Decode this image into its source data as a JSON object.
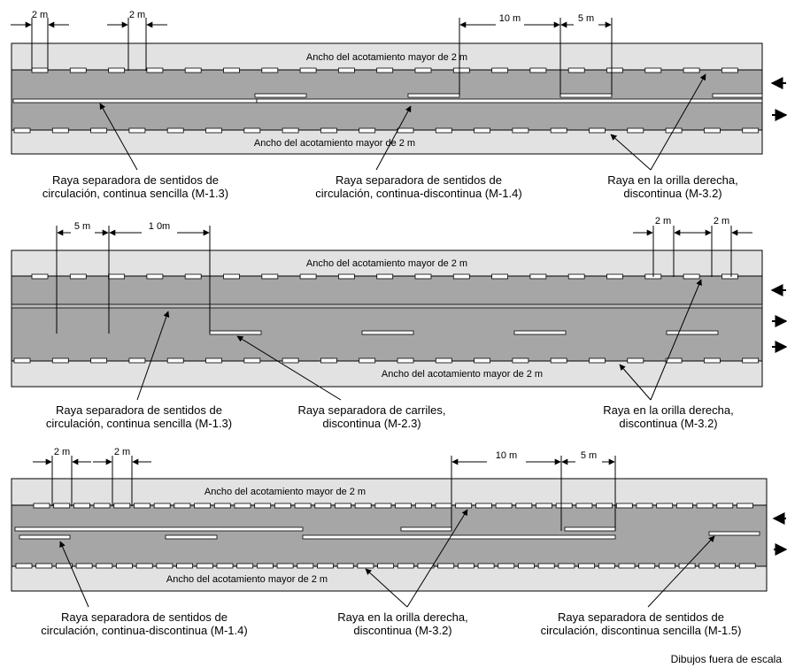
{
  "shoulder_label": "Ancho del acotamiento mayor de 2 m",
  "dimension_labels": {
    "two_m": "2 m",
    "ten_m": "10 m",
    "five_m": "5 m",
    "ten_m_alt": "1 0m"
  },
  "colors": {
    "shoulder": "#e2e2e2",
    "road": "#a6a6a6",
    "marking": "#ffffff",
    "outline": "#000000"
  },
  "diagrams": [
    {
      "id": "two-lane",
      "callouts": [
        {
          "line1": "Raya separadora de sentidos de",
          "line2": "circulación, continua sencilla (M-1.3)"
        },
        {
          "line1": "Raya separadora de sentidos de",
          "line2": "circulación, continua-discontinua (M-1.4)"
        },
        {
          "line1": "Raya en la orilla derecha,",
          "line2": "discontinua (M-3.2)"
        }
      ]
    },
    {
      "id": "three-lane",
      "callouts": [
        {
          "line1": "Raya separadora de sentidos de",
          "line2": "circulación, continua sencilla (M-1.3)"
        },
        {
          "line1": "Raya separadora de carriles,",
          "line2": "discontinua (M-2.3)"
        },
        {
          "line1": "Raya en la orilla derecha,",
          "line2": "discontinua (M-3.2)"
        }
      ]
    },
    {
      "id": "two-lane-passing",
      "callouts": [
        {
          "line1": "Raya separadora de sentidos de",
          "line2": "circulación, continua-discontinua (M-1.4)"
        },
        {
          "line1": "Raya en la orilla derecha,",
          "line2": "discontinua (M-3.2)"
        },
        {
          "line1": "Raya separadora de sentidos de",
          "line2": "circulación, discontinua sencilla (M-1.5)"
        }
      ]
    }
  ],
  "footnote": "Dibujos fuera de escala"
}
